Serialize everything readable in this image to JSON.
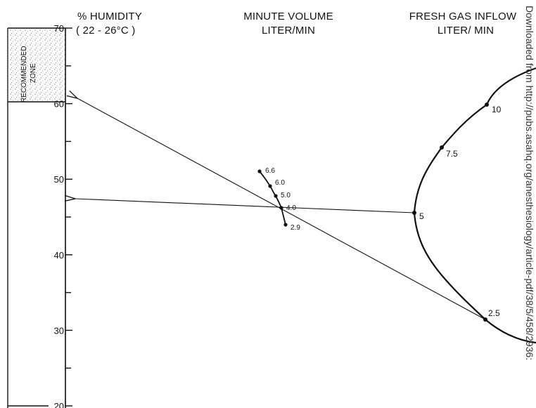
{
  "chart_data": {
    "type": "nomogram",
    "headers": {
      "humidity": {
        "line1": "% HUMIDITY",
        "line2": "( 22 - 26°C )"
      },
      "minute_volume": {
        "line1": "MINUTE VOLUME",
        "line2": "LITER/MIN"
      },
      "fresh_gas": {
        "line1": "FRESH  GAS INFLOW",
        "line2": "LITER/ MIN"
      }
    },
    "humidity_scale": {
      "range": [
        20,
        70
      ],
      "labeled_ticks": [
        70,
        60,
        50,
        40,
        30,
        20
      ],
      "minor_ticks": [
        65,
        55,
        45,
        35,
        25
      ]
    },
    "recommended_zone": {
      "label_line1": "RECOMMENDED",
      "label_line2": "ZONE",
      "range": [
        60,
        70
      ]
    },
    "minute_volume_scale": {
      "points": [
        {
          "label": "6.6",
          "value": 6.6
        },
        {
          "label": "6.0",
          "value": 6.0
        },
        {
          "label": "5.0",
          "value": 5.0
        },
        {
          "label": "4.0",
          "value": 4.0
        },
        {
          "label": "2.9",
          "value": 2.9
        }
      ]
    },
    "fresh_gas_scale": {
      "points": [
        {
          "label": "10",
          "value": 10
        },
        {
          "label": "7.5",
          "value": 7.5
        },
        {
          "label": "5",
          "value": 5
        },
        {
          "label": "2.5",
          "value": 2.5
        }
      ]
    },
    "example_lines": [
      {
        "fresh_gas_inflow": 2.5,
        "minute_volume": 4.0,
        "humidity": 60.5
      },
      {
        "fresh_gas_inflow": 5,
        "minute_volume": 4.0,
        "humidity": 47.2
      }
    ]
  },
  "side_text": "Downloaded from http://pubs.asahq.org/anesthesiology/article-pdf/38/5/458/2936:"
}
